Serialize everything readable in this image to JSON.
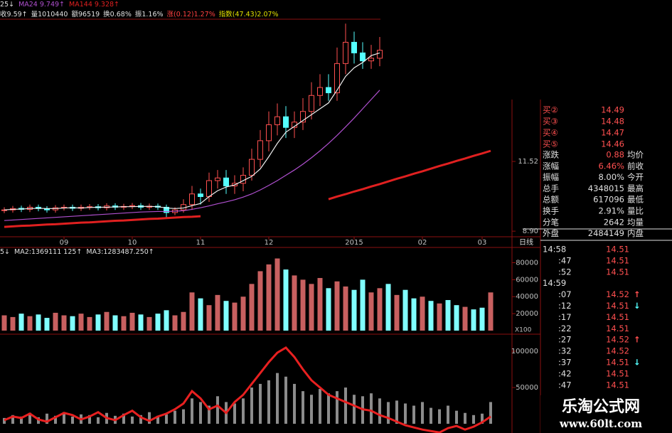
{
  "chart_data": [
    {
      "type": "candlestick",
      "header": [
        "25↓"
      ],
      "info": [
        {
          "text": "收9.59↑",
          "color": "#e0e0e0"
        },
        {
          "text": "量1010440",
          "color": "#e0e0e0"
        },
        {
          "text": "额96519",
          "color": "#e0e0e0"
        },
        {
          "text": "换0.68%",
          "color": "#e0e0e0"
        },
        {
          "text": "振1.16%",
          "color": "#e0e0e0"
        },
        {
          "text": "涨(0.12)1.27%",
          "color": "#ff4040"
        },
        {
          "text": "指数(47.43)2.07%",
          "color": "#e0e000"
        }
      ],
      "period_label": "日线",
      "categories": [
        null,
        null,
        null,
        null,
        null,
        null,
        null,
        "09",
        null,
        null,
        null,
        null,
        null,
        null,
        null,
        "10",
        null,
        null,
        null,
        null,
        null,
        null,
        null,
        "11",
        null,
        null,
        null,
        null,
        null,
        null,
        null,
        "12",
        null,
        null,
        null,
        null,
        null,
        null,
        null,
        null,
        null,
        "2015",
        null,
        null,
        null,
        null,
        null,
        null,
        null,
        "02",
        null,
        null,
        null,
        null,
        null,
        null,
        "03",
        null
      ],
      "open": [
        9.68,
        9.7,
        9.76,
        9.72,
        9.8,
        9.74,
        9.7,
        9.78,
        9.8,
        9.76,
        9.8,
        9.82,
        9.78,
        9.85,
        9.8,
        9.83,
        9.86,
        9.8,
        9.84,
        9.8,
        9.6,
        9.7,
        9.9,
        10.3,
        10.2,
        10.8,
        10.9,
        10.6,
        10.7,
        11.0,
        11.6,
        12.3,
        12.9,
        13.2,
        12.8,
        13.0,
        13.4,
        14.0,
        14.3,
        14.1,
        15.2,
        16.0,
        15.6,
        15.3,
        15.4,
        null,
        null,
        null,
        null,
        null,
        null,
        null,
        null,
        null,
        null,
        null,
        null,
        null
      ],
      "high": [
        9.8,
        9.85,
        9.86,
        9.9,
        9.9,
        9.84,
        9.88,
        9.9,
        9.9,
        9.9,
        9.92,
        9.92,
        9.95,
        9.95,
        9.93,
        9.96,
        9.96,
        9.94,
        9.94,
        9.9,
        9.8,
        10.1,
        10.6,
        10.5,
        11.1,
        11.2,
        11.2,
        11.0,
        11.3,
        12.0,
        12.7,
        13.4,
        13.7,
        13.6,
        13.4,
        13.9,
        14.5,
        14.8,
        14.8,
        15.8,
        16.7,
        16.4,
        16.0,
        15.9,
        16.2,
        null,
        null,
        null,
        null,
        null,
        null,
        null,
        null,
        null,
        null,
        null,
        null,
        null
      ],
      "low": [
        9.58,
        9.6,
        9.62,
        9.62,
        9.65,
        9.6,
        9.6,
        9.68,
        9.66,
        9.66,
        9.7,
        9.68,
        9.68,
        9.7,
        9.7,
        9.73,
        9.7,
        9.7,
        9.7,
        9.4,
        9.5,
        9.6,
        9.7,
        9.9,
        10.0,
        10.5,
        10.3,
        10.3,
        10.4,
        10.8,
        11.3,
        11.9,
        12.5,
        12.4,
        12.4,
        12.7,
        13.1,
        13.6,
        13.8,
        13.8,
        14.8,
        15.2,
        15.0,
        15.0,
        15.1,
        null,
        null,
        null,
        null,
        null,
        null,
        null,
        null,
        null,
        null,
        null,
        null,
        null
      ],
      "close": [
        9.7,
        9.75,
        9.72,
        9.8,
        9.75,
        9.7,
        9.78,
        9.8,
        9.76,
        9.8,
        9.82,
        9.78,
        9.85,
        9.8,
        9.83,
        9.86,
        9.8,
        9.84,
        9.8,
        9.6,
        9.7,
        9.9,
        10.3,
        10.2,
        10.8,
        10.9,
        10.6,
        10.7,
        11.0,
        11.6,
        12.3,
        12.9,
        13.2,
        12.8,
        13.0,
        13.4,
        14.0,
        14.3,
        14.1,
        15.2,
        16.0,
        15.6,
        15.3,
        15.4,
        15.7,
        null,
        null,
        null,
        null,
        null,
        null,
        null,
        null,
        null,
        null,
        null,
        null,
        null
      ],
      "up_color": "#ff5050",
      "down_color": "#54ffff",
      "series": [
        {
          "color": "#f0f0f0",
          "values": [
            9.7,
            9.72,
            9.73,
            9.75,
            9.76,
            9.75,
            9.75,
            9.77,
            9.78,
            9.77,
            9.79,
            9.8,
            9.8,
            9.81,
            9.82,
            9.82,
            9.83,
            9.83,
            9.82,
            9.77,
            9.75,
            9.77,
            9.86,
            9.94,
            10.2,
            10.42,
            10.56,
            10.64,
            10.8,
            10.96,
            11.24,
            11.7,
            12.2,
            12.62,
            12.84,
            13.06,
            13.28,
            13.5,
            13.72,
            14.2,
            14.72,
            15.04,
            15.24,
            15.5,
            15.6,
            null,
            null,
            null,
            null,
            null,
            null,
            null,
            null,
            null,
            null,
            null,
            null,
            null
          ]
        },
        {
          "name": "MA24",
          "label": "9.749↑",
          "color": "#b050d0",
          "values": [
            9.3,
            9.32,
            9.34,
            9.36,
            9.38,
            9.4,
            9.42,
            9.44,
            9.46,
            9.48,
            9.5,
            9.52,
            9.54,
            9.56,
            9.58,
            9.6,
            9.62,
            9.63,
            9.64,
            9.64,
            9.65,
            9.67,
            9.72,
            9.78,
            9.85,
            9.93,
            10.0,
            10.08,
            10.18,
            10.3,
            10.45,
            10.62,
            10.8,
            11.0,
            11.2,
            11.42,
            11.66,
            11.92,
            12.2,
            12.5,
            12.82,
            13.15,
            13.5,
            13.85,
            14.2,
            null,
            null,
            null,
            null,
            null,
            null,
            null,
            null,
            null,
            null,
            null,
            null,
            null
          ]
        },
        {
          "name": "MA144",
          "label": "9.328↑",
          "color": "#e02020",
          "values": [
            9.06,
            9.08,
            9.1,
            9.11,
            9.13,
            9.15,
            9.16,
            9.18,
            9.2,
            9.22,
            9.23,
            9.25,
            9.27,
            9.29,
            9.3,
            9.32,
            9.34,
            9.36,
            9.37,
            9.39,
            9.41,
            9.43,
            9.44,
            9.46,
            null,
            null,
            null,
            null,
            null,
            null,
            null,
            null,
            null,
            null,
            null,
            null,
            null,
            null,
            10.1,
            10.2,
            10.29,
            10.39,
            10.48,
            10.58,
            10.67,
            10.77,
            10.87,
            10.96,
            11.06,
            11.15,
            11.25,
            11.35,
            11.44,
            11.54,
            11.63,
            11.73,
            11.82,
            11.92
          ]
        }
      ],
      "ylim": [
        8.69,
        16.84
      ],
      "yticks": [
        11.52,
        {
          "value": 8.9,
          "label": "8.90"
        }
      ]
    },
    {
      "type": "bar",
      "header": [
        "5↓",
        "MA2:1369111 125↑",
        "MA3:1283487.250↑"
      ],
      "unit_label": "X100",
      "values": [
        18000,
        16000,
        20000,
        17000,
        19000,
        15000,
        21000,
        18000,
        17000,
        20000,
        16000,
        19000,
        22000,
        18000,
        17000,
        21000,
        19000,
        16000,
        20000,
        24000,
        18000,
        22000,
        45000,
        38000,
        30000,
        42000,
        35000,
        33000,
        40000,
        55000,
        70000,
        78000,
        85000,
        72000,
        65000,
        60000,
        55000,
        62000,
        50000,
        58000,
        52000,
        48000,
        60000,
        45000,
        50000,
        55000,
        42000,
        48000,
        38000,
        40000,
        35000,
        32000,
        36000,
        30000,
        28000,
        25000,
        27000,
        45000
      ],
      "rising": [
        true,
        true,
        false,
        true,
        false,
        false,
        true,
        true,
        false,
        true,
        true,
        false,
        true,
        false,
        true,
        true,
        false,
        true,
        false,
        false,
        true,
        true,
        true,
        false,
        true,
        true,
        false,
        true,
        true,
        true,
        true,
        true,
        true,
        false,
        true,
        true,
        true,
        true,
        false,
        true,
        true,
        false,
        false,
        true,
        true,
        false,
        true,
        false,
        false,
        true,
        false,
        true,
        false,
        false,
        true,
        false,
        false,
        true
      ],
      "up_color": "#c86060",
      "down_color": "#80ffff",
      "ylim": [
        0,
        98000
      ],
      "yticks": [
        20000,
        40000,
        60000,
        80000
      ]
    },
    {
      "type": "bar",
      "values": [
        8000,
        12000,
        10000,
        15000,
        9000,
        14000,
        11000,
        16000,
        10000,
        13000,
        12000,
        9000,
        15000,
        11000,
        14000,
        10000,
        12000,
        16000,
        11000,
        13000,
        18000,
        20000,
        35000,
        30000,
        25000,
        38000,
        30000,
        28000,
        35000,
        50000,
        55000,
        60000,
        70000,
        65000,
        55000,
        45000,
        40000,
        48000,
        42000,
        45000,
        50000,
        40000,
        38000,
        42000,
        35000,
        30000,
        32000,
        28000,
        25000,
        30000,
        22000,
        20000,
        25000,
        18000,
        15000,
        12000,
        14000,
        30000
      ],
      "color": "#8c8c8c",
      "series": [
        {
          "color": "#e82020",
          "values": [
            5000,
            10000,
            8000,
            14000,
            6000,
            3000,
            9000,
            15000,
            12000,
            6000,
            10000,
            16000,
            8000,
            5000,
            12000,
            18000,
            9000,
            4000,
            10000,
            14000,
            20000,
            28000,
            45000,
            35000,
            20000,
            25000,
            15000,
            30000,
            40000,
            55000,
            70000,
            85000,
            98000,
            105000,
            92000,
            75000,
            60000,
            50000,
            40000,
            35000,
            30000,
            25000,
            20000,
            18000,
            12000,
            8000,
            3000,
            -2000,
            -5000,
            -8000,
            -10000,
            -12000,
            -6000,
            -3000,
            -8000,
            -4000,
            2000,
            10000
          ]
        }
      ],
      "ylim": [
        -12700,
        121600
      ],
      "yticks": [
        50000,
        100000
      ]
    }
  ],
  "side_panel": {
    "bids": [
      {
        "label": "买②",
        "price": 14.49
      },
      {
        "label": "买③",
        "price": 14.48
      },
      {
        "label": "买④",
        "price": 14.47
      },
      {
        "label": "买⑤",
        "price": 14.46
      }
    ],
    "stats": [
      {
        "label": "涨跌",
        "value": 0.88,
        "label2": "均价"
      },
      {
        "label": "涨幅",
        "value": "6.46%",
        "label2": "前收"
      },
      {
        "label": "振幅",
        "value": "8.00%",
        "label2": "今开"
      },
      {
        "label": "总手",
        "value": 4348015,
        "label2": "最高"
      },
      {
        "label": "总额",
        "value": 617096,
        "label2": "最低"
      },
      {
        "label": "换手",
        "value": "2.91%",
        "label2": "量比"
      },
      {
        "label": "分笔",
        "value": 2642,
        "label2": "均量"
      },
      {
        "label": "外盘",
        "value": 2484149,
        "label2": "内盘"
      }
    ],
    "ticks": [
      {
        "time": "14:58",
        "price": 14.51
      },
      {
        "time": ":47",
        "price": 14.51
      },
      {
        "time": ":52",
        "price": 14.51
      },
      {
        "time": "14:59"
      },
      {
        "time": ":07",
        "price": 14.52,
        "arrow": "↑"
      },
      {
        "time": ":12",
        "price": 14.51,
        "arrow": "↓"
      },
      {
        "time": ":17",
        "price": 14.51
      },
      {
        "time": ":22",
        "price": 14.51
      },
      {
        "time": ":27",
        "price": 14.52,
        "arrow": "↑"
      },
      {
        "time": ":32",
        "price": 14.52
      },
      {
        "time": ":37",
        "price": 14.51,
        "arrow": "↓"
      },
      {
        "time": ":42",
        "price": 14.51
      },
      {
        "time": ":47",
        "price": 14.51
      }
    ],
    "watermark": {
      "title": "乐淘公式网",
      "url": "www.60lt.com"
    }
  }
}
